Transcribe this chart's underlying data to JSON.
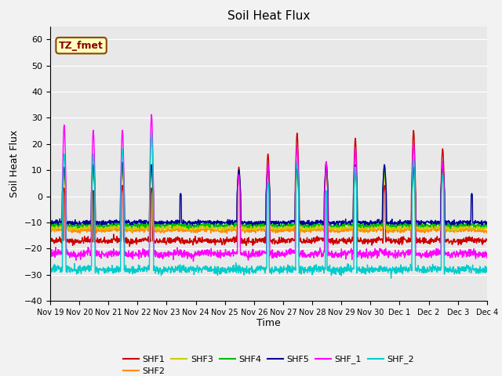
{
  "title": "Soil Heat Flux",
  "ylabel": "Soil Heat Flux",
  "xlabel": "Time",
  "ylim": [
    -40,
    65
  ],
  "yticks": [
    -40,
    -30,
    -20,
    -10,
    0,
    10,
    20,
    30,
    40,
    50,
    60
  ],
  "annotation_text": "TZ_fmet",
  "annotation_color": "#8B0000",
  "annotation_bg": "#FFFFC0",
  "annotation_border": "#8B4500",
  "plot_bg": "#E8E8E8",
  "fig_bg": "#F2F2F2",
  "colors": {
    "SHF1": "#CC0000",
    "SHF2": "#FF8C00",
    "SHF3": "#CCCC00",
    "SHF4": "#00BB00",
    "SHF5": "#000099",
    "SHF_1": "#FF00FF",
    "SHF_2": "#00CCCC"
  },
  "linewidth": 1.0,
  "xtick_labels": [
    "Nov 19",
    "Nov 20",
    "Nov 21",
    "Nov 22",
    "Nov 23",
    "Nov 24",
    "Nov 25",
    "Nov 26",
    "Nov 27",
    "Nov 28",
    "Nov 29",
    "Nov 30",
    "Dec 1",
    "Dec 2",
    "Dec 3",
    "Dec 4"
  ]
}
